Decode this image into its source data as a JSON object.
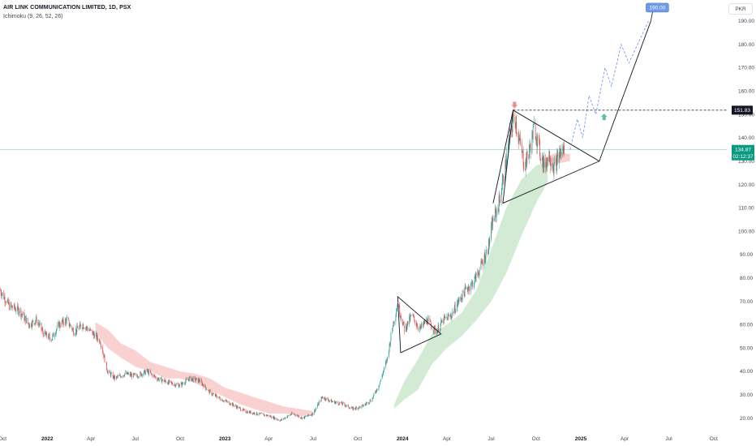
{
  "header": {
    "symbol_line": "AIR LINK COMMUNICATION LIMITED, 1D, PSX",
    "indicator_line": "Ichimoku (9, 26, 52, 26)"
  },
  "currency_label": "PKR",
  "chart_data": {
    "type": "line",
    "y_axis": {
      "range": [
        15,
        199
      ],
      "ticks": [
        20,
        30,
        40,
        50,
        60,
        70,
        80,
        90,
        100,
        110,
        120,
        130,
        140,
        150,
        160,
        170,
        180,
        190
      ],
      "tick_labels": [
        "20.00",
        "30.00",
        "40.00",
        "50.00",
        "60.00",
        "70.00",
        "80.00",
        "90.00",
        "100.00",
        "110.00",
        "120.00",
        "130.00",
        "140.00",
        "150.00",
        "160.00",
        "170.00",
        "180.00",
        "190.00"
      ]
    },
    "x_axis": {
      "range": [
        "2021-09-26",
        "2025-10-28"
      ],
      "ticks": [
        {
          "date": "2021-10-01",
          "label": "Oct",
          "bold": false
        },
        {
          "date": "2022-01-01",
          "label": "2022",
          "bold": true
        },
        {
          "date": "2022-04-01",
          "label": "Apr",
          "bold": false
        },
        {
          "date": "2022-07-01",
          "label": "Jul",
          "bold": false
        },
        {
          "date": "2022-10-01",
          "label": "Oct",
          "bold": false
        },
        {
          "date": "2023-01-01",
          "label": "2023",
          "bold": true
        },
        {
          "date": "2023-04-01",
          "label": "Apr",
          "bold": false
        },
        {
          "date": "2023-07-01",
          "label": "Jul",
          "bold": false
        },
        {
          "date": "2023-10-01",
          "label": "Oct",
          "bold": false
        },
        {
          "date": "2024-01-01",
          "label": "2024",
          "bold": true
        },
        {
          "date": "2024-04-01",
          "label": "Apr",
          "bold": false
        },
        {
          "date": "2024-07-01",
          "label": "Jul",
          "bold": false
        },
        {
          "date": "2024-10-01",
          "label": "Oct",
          "bold": false
        },
        {
          "date": "2025-01-01",
          "label": "2025",
          "bold": true
        },
        {
          "date": "2025-04-01",
          "label": "Apr",
          "bold": false
        },
        {
          "date": "2025-07-01",
          "label": "Jul",
          "bold": false
        },
        {
          "date": "2025-10-01",
          "label": "Oct",
          "bold": false
        }
      ]
    },
    "grid": false,
    "price_path": [
      [
        "2021-09-26",
        75
      ],
      [
        "2021-10-15",
        68
      ],
      [
        "2021-11-05",
        66
      ],
      [
        "2021-11-25",
        60
      ],
      [
        "2021-12-10",
        62
      ],
      [
        "2021-12-25",
        56
      ],
      [
        "2022-01-10",
        54
      ],
      [
        "2022-01-25",
        60
      ],
      [
        "2022-02-10",
        62
      ],
      [
        "2022-02-25",
        57
      ],
      [
        "2022-03-15",
        60
      ],
      [
        "2022-04-01",
        57
      ],
      [
        "2022-04-20",
        53
      ],
      [
        "2022-05-05",
        40
      ],
      [
        "2022-05-20",
        37
      ],
      [
        "2022-06-10",
        39
      ],
      [
        "2022-07-01",
        38
      ],
      [
        "2022-07-25",
        40
      ],
      [
        "2022-08-15",
        37
      ],
      [
        "2022-09-10",
        35
      ],
      [
        "2022-10-01",
        34
      ],
      [
        "2022-10-20",
        37
      ],
      [
        "2022-11-10",
        36
      ],
      [
        "2022-12-01",
        31
      ],
      [
        "2022-12-25",
        28
      ],
      [
        "2023-01-15",
        26
      ],
      [
        "2023-02-10",
        23
      ],
      [
        "2023-03-05",
        22
      ],
      [
        "2023-04-01",
        21
      ],
      [
        "2023-04-25",
        19
      ],
      [
        "2023-05-20",
        22
      ],
      [
        "2023-06-10",
        20
      ],
      [
        "2023-07-01",
        22
      ],
      [
        "2023-07-20",
        29
      ],
      [
        "2023-08-10",
        27
      ],
      [
        "2023-09-01",
        26
      ],
      [
        "2023-09-20",
        24
      ],
      [
        "2023-10-10",
        25
      ],
      [
        "2023-10-30",
        28
      ],
      [
        "2023-11-15",
        35
      ],
      [
        "2023-11-30",
        45
      ],
      [
        "2023-12-12",
        60
      ],
      [
        "2023-12-22",
        69
      ],
      [
        "2024-01-05",
        58
      ],
      [
        "2024-01-20",
        64
      ],
      [
        "2024-02-05",
        58
      ],
      [
        "2024-02-20",
        62
      ],
      [
        "2024-03-10",
        57
      ],
      [
        "2024-03-25",
        62
      ],
      [
        "2024-04-10",
        64
      ],
      [
        "2024-04-25",
        70
      ],
      [
        "2024-05-10",
        75
      ],
      [
        "2024-05-25",
        78
      ],
      [
        "2024-06-10",
        85
      ],
      [
        "2024-06-25",
        93
      ],
      [
        "2024-07-05",
        105
      ],
      [
        "2024-07-15",
        110
      ],
      [
        "2024-07-28",
        125
      ],
      [
        "2024-08-08",
        140
      ],
      [
        "2024-08-18",
        150
      ],
      [
        "2024-08-28",
        138
      ],
      [
        "2024-09-08",
        128
      ],
      [
        "2024-09-18",
        135
      ],
      [
        "2024-09-28",
        145
      ],
      [
        "2024-10-08",
        135
      ],
      [
        "2024-10-18",
        128
      ],
      [
        "2024-10-28",
        133
      ],
      [
        "2024-11-08",
        127
      ],
      [
        "2024-11-18",
        133
      ],
      [
        "2024-11-28",
        135
      ]
    ],
    "cloud_red": [
      [
        "2022-04-10",
        61,
        57
      ],
      [
        "2022-05-05",
        58,
        50
      ],
      [
        "2022-06-01",
        52,
        46
      ],
      [
        "2022-07-01",
        49,
        42
      ],
      [
        "2022-08-01",
        44,
        40
      ],
      [
        "2022-09-01",
        42,
        37
      ],
      [
        "2022-10-01",
        40,
        37
      ],
      [
        "2022-11-01",
        39,
        35
      ],
      [
        "2022-12-01",
        37,
        32
      ],
      [
        "2023-01-01",
        33,
        29
      ],
      [
        "2023-02-01",
        31,
        26
      ],
      [
        "2023-03-01",
        29,
        24
      ],
      [
        "2023-04-01",
        27,
        22
      ],
      [
        "2023-05-01",
        25,
        22
      ],
      [
        "2023-06-01",
        24,
        21
      ],
      [
        "2023-07-01",
        23,
        21
      ]
    ],
    "cloud_green": [
      [
        "2023-12-15",
        26,
        24
      ],
      [
        "2024-01-05",
        36,
        28
      ],
      [
        "2024-02-01",
        45,
        32
      ],
      [
        "2024-03-01",
        56,
        43
      ],
      [
        "2024-04-01",
        60,
        50
      ],
      [
        "2024-05-01",
        65,
        55
      ],
      [
        "2024-06-01",
        75,
        62
      ],
      [
        "2024-07-01",
        92,
        70
      ],
      [
        "2024-08-01",
        110,
        82
      ],
      [
        "2024-09-01",
        122,
        98
      ],
      [
        "2024-10-01",
        128,
        112
      ],
      [
        "2024-10-25",
        130,
        121
      ]
    ],
    "cloud_red_future": [
      [
        "2024-10-25",
        132,
        128
      ],
      [
        "2024-11-15",
        134,
        129
      ],
      [
        "2024-12-10",
        133,
        130
      ]
    ],
    "annotations": {
      "triangle_2024_q1": [
        [
          "2023-12-22",
          72
        ],
        [
          "2024-03-20",
          56
        ],
        [
          "2023-12-28",
          48
        ]
      ],
      "triangle_2024_h2": [
        [
          "2024-08-15",
          151.83
        ],
        [
          "2025-02-08",
          130
        ],
        [
          "2024-07-25",
          112
        ]
      ],
      "rally_line_left": [
        [
          "2024-07-05",
          112
        ],
        [
          "2024-08-15",
          151.83
        ]
      ],
      "target_path": [
        [
          "2025-02-08",
          130
        ],
        [
          "2025-05-25",
          190
        ]
      ],
      "projection_path": [
        [
          "2024-12-10",
          135
        ],
        [
          "2024-12-25",
          148
        ],
        [
          "2025-01-05",
          140
        ],
        [
          "2025-01-18",
          158
        ],
        [
          "2025-02-01",
          150
        ],
        [
          "2025-02-20",
          170
        ],
        [
          "2025-03-05",
          162
        ],
        [
          "2025-03-25",
          180
        ],
        [
          "2025-04-10",
          172
        ],
        [
          "2025-05-20",
          190
        ]
      ],
      "resistance_level": 151.83,
      "resistance_label": "151.83",
      "current_price": 134.87,
      "current_price_label": "134.87",
      "countdown_label": "02:12:37",
      "target_value": 190,
      "target_label": "190.00",
      "down_arrow": [
        "2024-08-18",
        153
      ],
      "up_arrow": [
        "2025-02-18",
        150
      ]
    }
  },
  "colors": {
    "candle_up": "#26a69a",
    "candle_down": "#ef5350",
    "cloud_red": "#f7c6c5",
    "cloud_green": "#c8e6c9",
    "last_price": "#089981",
    "resistance_label_bg": "#131722",
    "target_label_bg": "#6f9ce8",
    "projection": "#6f8fe8",
    "arrow_down": "#f08c8c",
    "arrow_up": "#5ebfa0"
  }
}
